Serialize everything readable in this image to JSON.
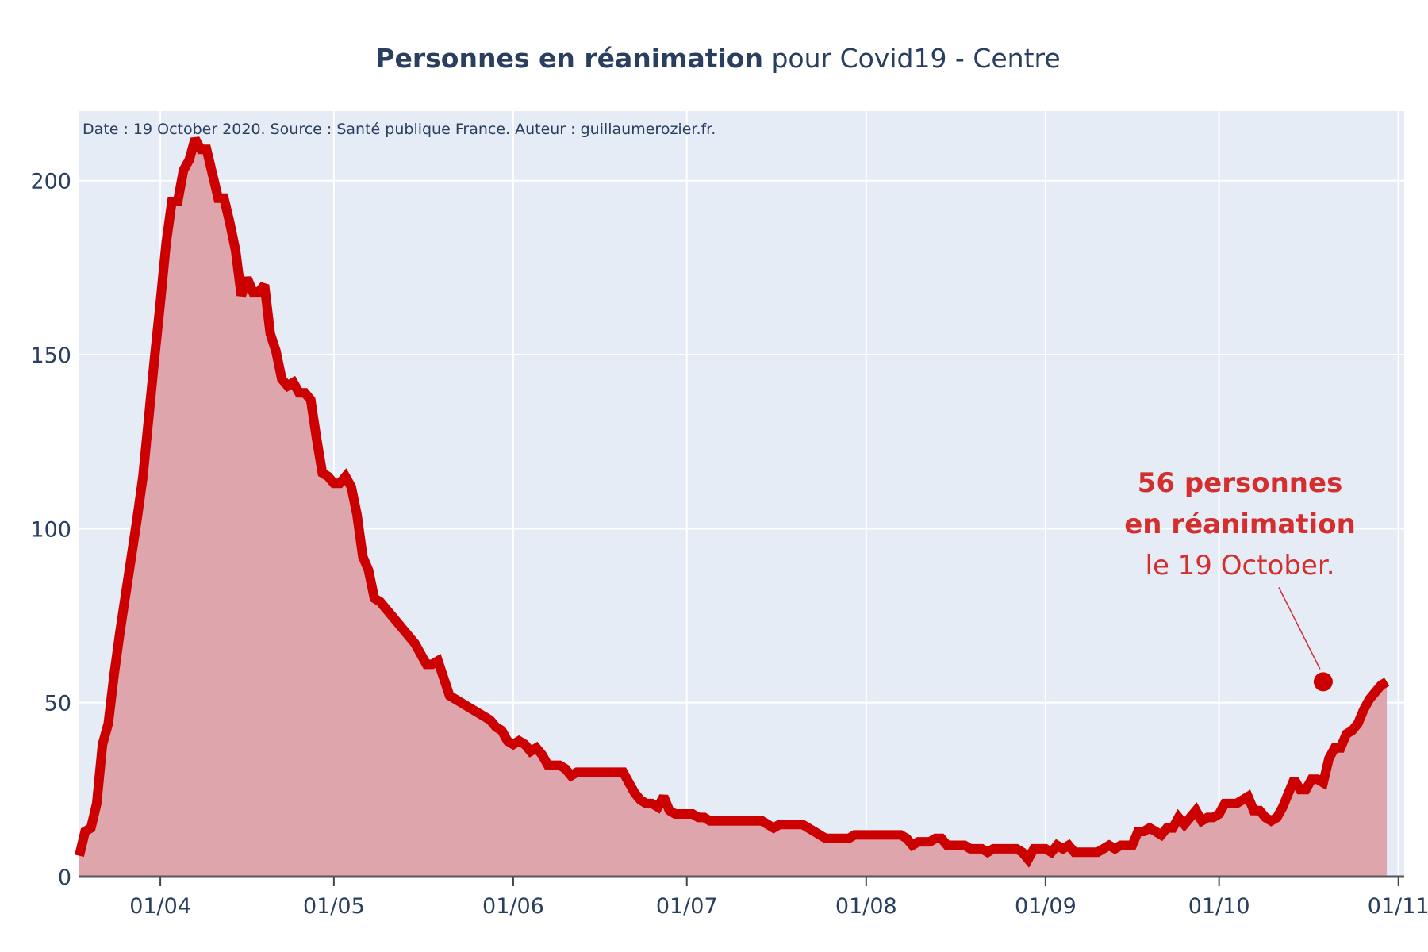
{
  "chart_data": {
    "type": "area",
    "title_bold": "Personnes en réanimation",
    "title_rest": " pour Covid19 - Centre",
    "subtitle": "Date : 19 October 2020. Source : Santé publique France. Auteur : guillaumerozier.fr.",
    "xlabel": "",
    "ylabel": "",
    "x_start": "2020-03-18",
    "xlim": [
      "2020-03-18",
      "2020-11-02"
    ],
    "ylim": [
      0,
      220
    ],
    "y_ticks": [
      0,
      50,
      100,
      150,
      200
    ],
    "x_ticks": [
      {
        "date": "2020-04-01",
        "label": "01/04"
      },
      {
        "date": "2020-05-01",
        "label": "01/05"
      },
      {
        "date": "2020-06-01",
        "label": "01/06"
      },
      {
        "date": "2020-07-01",
        "label": "01/07"
      },
      {
        "date": "2020-08-01",
        "label": "01/08"
      },
      {
        "date": "2020-09-01",
        "label": "01/09"
      },
      {
        "date": "2020-10-01",
        "label": "01/10"
      },
      {
        "date": "2020-11-01",
        "label": "01/11"
      }
    ],
    "grid": true,
    "colors": {
      "line": "#cc0000",
      "fill": "#dea6ac",
      "plot_bg": "#e5ecf6",
      "grid": "#ffffff",
      "text": "#2a3f5f",
      "annotation": "#d32f2f"
    },
    "series": [
      {
        "values": [
          6,
          13,
          14,
          21,
          38,
          44,
          58,
          70,
          81,
          92,
          103,
          115,
          132,
          149,
          165,
          182,
          194,
          194,
          203,
          206,
          212,
          209,
          209,
          202,
          195,
          195,
          188,
          180,
          167,
          172,
          168,
          168,
          170,
          156,
          151,
          143,
          141,
          142,
          139,
          139,
          137,
          126,
          116,
          115,
          113,
          113,
          115,
          112,
          104,
          92,
          88,
          80,
          79,
          77,
          75,
          73,
          71,
          69,
          67,
          64,
          61,
          61,
          62,
          57,
          52,
          51,
          50,
          49,
          48,
          47,
          46,
          45,
          43,
          42,
          39,
          38,
          39,
          38,
          36,
          37,
          35,
          32,
          32,
          32,
          31,
          29,
          30,
          30,
          30,
          30,
          30,
          30,
          30,
          30,
          30,
          27,
          24,
          22,
          21,
          21,
          20,
          23,
          19,
          18,
          18,
          18,
          18,
          17,
          17,
          16,
          16,
          16,
          16,
          16,
          16,
          16,
          16,
          16,
          16,
          15,
          14,
          15,
          15,
          15,
          15,
          15,
          14,
          13,
          12,
          11,
          11,
          11,
          11,
          11,
          12,
          12,
          12,
          12,
          12,
          12,
          12,
          12,
          12,
          11,
          9,
          10,
          10,
          10,
          11,
          11,
          9,
          9,
          9,
          9,
          8,
          8,
          8,
          7,
          8,
          8,
          8,
          8,
          8,
          7,
          5,
          8,
          8,
          8,
          7,
          9,
          8,
          9,
          7,
          7,
          7,
          7,
          7,
          8,
          9,
          8,
          9,
          9,
          9,
          13,
          13,
          14,
          13,
          12,
          14,
          14,
          17,
          15,
          17,
          19,
          16,
          17,
          17,
          18,
          21,
          21,
          21,
          22,
          23,
          19,
          19,
          17,
          16,
          17,
          20,
          24,
          28,
          25,
          25,
          28,
          28,
          27,
          34,
          37,
          37,
          41,
          42,
          44,
          48,
          51,
          53,
          55,
          56
        ]
      }
    ],
    "annotation": {
      "line1": "56 personnes",
      "line2": "en réanimation",
      "line3": "le 19 October.",
      "value": 56,
      "date": "2020-10-19"
    }
  }
}
